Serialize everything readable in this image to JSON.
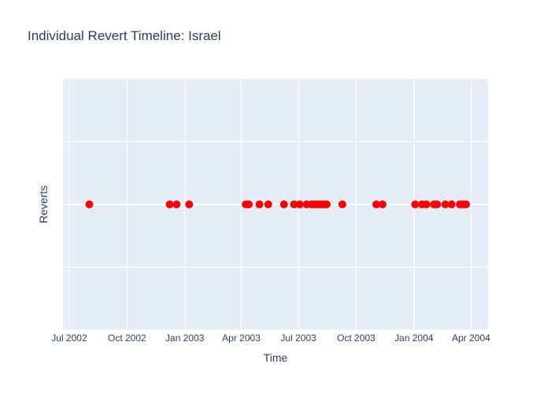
{
  "colors": {
    "plot_bg": "#e5ecf6",
    "grid": "#ffffff",
    "marker": "#ff0000",
    "text": "#2a3f5f"
  },
  "chart_data": {
    "type": "scatter",
    "title": "Individual Revert Timeline: Israel",
    "xlabel": "Time",
    "ylabel": "Reverts",
    "x_axis": "date",
    "xlim": [
      "2002-06-21",
      "2004-04-28"
    ],
    "ylim": [
      -1,
      1
    ],
    "x_ticks": [
      {
        "date": "2002-07-01",
        "label": "Jul 2002"
      },
      {
        "date": "2002-10-01",
        "label": "Oct 2002"
      },
      {
        "date": "2003-01-01",
        "label": "Jan 2003"
      },
      {
        "date": "2003-04-01",
        "label": "Apr 2003"
      },
      {
        "date": "2003-07-01",
        "label": "Jul 2003"
      },
      {
        "date": "2003-10-01",
        "label": "Oct 2003"
      },
      {
        "date": "2004-01-01",
        "label": "Jan 2004"
      },
      {
        "date": "2004-04-01",
        "label": "Apr 2004"
      }
    ],
    "y_gridlines": [
      -1,
      -0.5,
      0,
      0.5,
      1
    ],
    "grid": true,
    "series": [
      {
        "y": 0,
        "x": [
          "2002-08-02",
          "2002-12-08",
          "2002-12-19",
          "2003-01-08",
          "2003-04-08",
          "2003-04-13",
          "2003-04-30",
          "2003-05-14",
          "2003-06-08",
          "2003-06-24",
          "2003-07-03",
          "2003-07-14",
          "2003-07-22",
          "2003-07-27",
          "2003-08-01",
          "2003-08-06",
          "2003-08-11",
          "2003-08-15",
          "2003-09-09",
          "2003-11-02",
          "2003-11-12",
          "2004-01-03",
          "2004-01-14",
          "2004-01-21",
          "2004-02-02",
          "2004-02-07",
          "2004-02-20",
          "2004-03-01",
          "2004-03-14",
          "2004-03-19",
          "2004-03-24"
        ]
      }
    ]
  }
}
